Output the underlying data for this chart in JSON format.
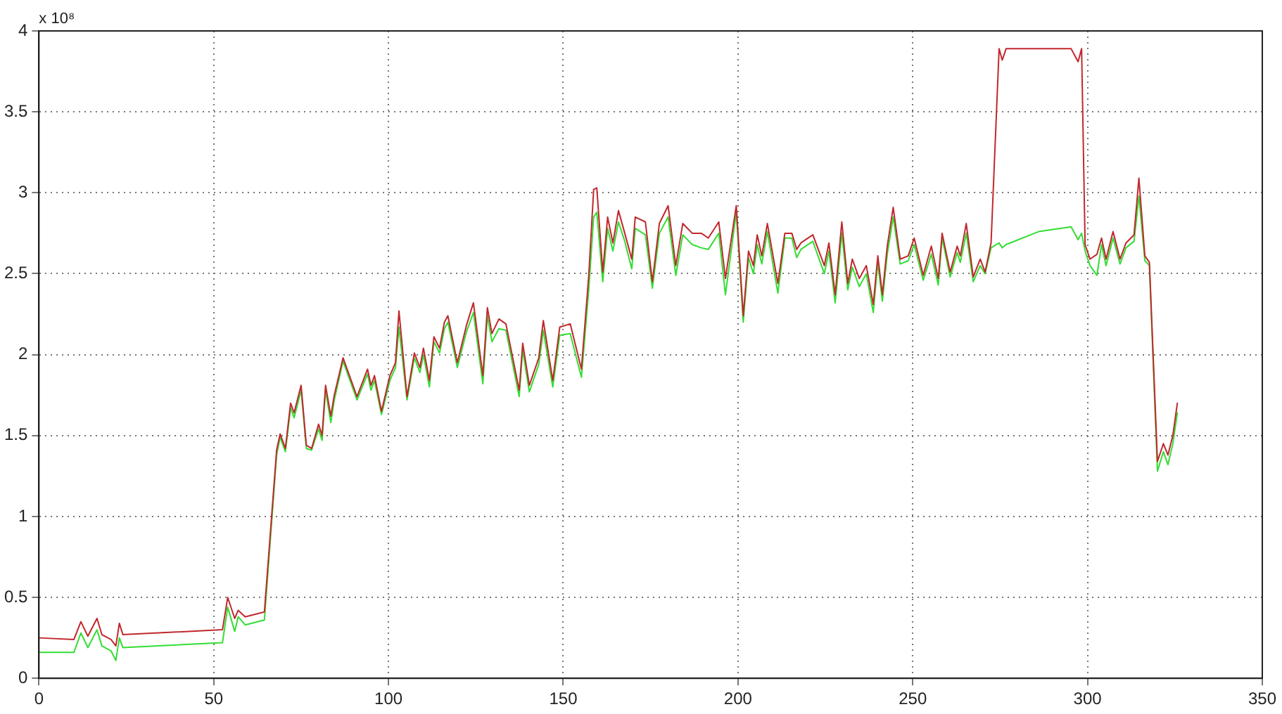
{
  "chart_data": {
    "type": "line",
    "annotations": [
      "x 10⁸"
    ],
    "x": [
      0,
      10,
      12,
      14,
      16.6,
      18,
      20.6,
      22,
      23,
      24,
      52.5,
      54,
      56,
      57,
      59,
      64.5,
      68,
      69,
      70.5,
      72,
      73,
      75,
      76.5,
      78,
      80,
      81,
      82,
      83.5,
      84.5,
      87,
      91,
      94,
      95,
      96,
      98,
      100.4,
      102,
      103,
      105.3,
      107.4,
      109,
      110,
      111.7,
      113,
      114.6,
      116,
      117,
      119.7,
      122.3,
      124.3,
      127,
      128.3,
      129.6,
      131.6,
      133.6,
      137.4,
      138.4,
      140.3,
      143,
      144.3,
      147,
      149,
      152,
      155.2,
      157.3,
      158.7,
      159.6,
      161.3,
      162.7,
      164.2,
      165.8,
      167.6,
      169.6,
      170.6,
      173.5,
      175.5,
      177.5,
      180,
      182.2,
      184.2,
      186.9,
      189.5,
      191.5,
      194.5,
      196.4,
      199.5,
      201.5,
      203,
      204.4,
      205.5,
      206.8,
      208.4,
      211.4,
      213.4,
      215.4,
      216.8,
      218,
      221.4,
      224.7,
      226,
      227.8,
      229.7,
      231.4,
      232.7,
      234.7,
      236.7,
      238.7,
      240,
      241.3,
      242.7,
      244.4,
      246.4,
      248.7,
      250.4,
      253,
      255.3,
      257.3,
      258.4,
      260.7,
      262.7,
      263.6,
      265.3,
      267.3,
      269.3,
      270.7,
      272.4,
      274.7,
      275.6,
      276.7,
      286,
      295.3,
      297.3,
      298.3,
      299.3,
      300.7,
      302.7,
      304,
      305.3,
      307.3,
      309.3,
      311,
      313.3,
      314.7,
      316.4,
      317.7,
      320,
      321.7,
      323,
      324.4,
      325.7
    ],
    "series": [
      {
        "color": "#c0282d",
        "values": [
          0.25,
          0.24,
          0.35,
          0.26,
          0.37,
          0.27,
          0.24,
          0.2,
          0.34,
          0.27,
          0.3,
          0.5,
          0.37,
          0.42,
          0.38,
          0.41,
          1.41,
          1.51,
          1.42,
          1.7,
          1.64,
          1.81,
          1.44,
          1.42,
          1.57,
          1.5,
          1.81,
          1.62,
          1.75,
          1.98,
          1.74,
          1.91,
          1.81,
          1.87,
          1.65,
          1.87,
          1.95,
          2.27,
          1.74,
          2.01,
          1.92,
          2.04,
          1.84,
          2.11,
          2.04,
          2.2,
          2.24,
          1.95,
          2.18,
          2.32,
          1.87,
          2.29,
          2.13,
          2.22,
          2.19,
          1.78,
          2.07,
          1.81,
          1.98,
          2.21,
          1.84,
          2.17,
          2.19,
          1.91,
          2.49,
          3.02,
          3.03,
          2.51,
          2.85,
          2.69,
          2.89,
          2.75,
          2.59,
          2.85,
          2.82,
          2.45,
          2.81,
          2.92,
          2.55,
          2.81,
          2.75,
          2.75,
          2.72,
          2.82,
          2.47,
          2.92,
          2.24,
          2.64,
          2.55,
          2.74,
          2.61,
          2.81,
          2.44,
          2.75,
          2.75,
          2.65,
          2.69,
          2.74,
          2.55,
          2.69,
          2.37,
          2.82,
          2.44,
          2.59,
          2.47,
          2.55,
          2.31,
          2.61,
          2.37,
          2.67,
          2.91,
          2.59,
          2.61,
          2.72,
          2.49,
          2.67,
          2.47,
          2.75,
          2.51,
          2.67,
          2.61,
          2.81,
          2.48,
          2.59,
          2.51,
          2.69,
          3.89,
          3.82,
          3.89,
          3.89,
          3.89,
          3.81,
          3.89,
          2.68,
          2.59,
          2.62,
          2.72,
          2.59,
          2.76,
          2.59,
          2.69,
          2.74,
          3.09,
          2.61,
          2.57,
          1.34,
          1.45,
          1.38,
          1.5,
          1.7
        ]
      },
      {
        "color": "#33dd33",
        "values": [
          0.16,
          0.16,
          0.28,
          0.19,
          0.3,
          0.2,
          0.17,
          0.11,
          0.25,
          0.19,
          0.22,
          0.44,
          0.29,
          0.38,
          0.33,
          0.36,
          1.38,
          1.49,
          1.4,
          1.67,
          1.61,
          1.78,
          1.42,
          1.41,
          1.54,
          1.47,
          1.78,
          1.58,
          1.72,
          1.96,
          1.72,
          1.88,
          1.78,
          1.84,
          1.63,
          1.84,
          1.92,
          2.17,
          1.72,
          1.98,
          1.89,
          2.0,
          1.8,
          2.08,
          2.01,
          2.16,
          2.2,
          1.92,
          2.14,
          2.26,
          1.82,
          2.24,
          2.08,
          2.16,
          2.15,
          1.74,
          2.03,
          1.77,
          1.94,
          2.15,
          1.8,
          2.12,
          2.13,
          1.86,
          2.4,
          2.85,
          2.88,
          2.45,
          2.78,
          2.64,
          2.82,
          2.7,
          2.53,
          2.78,
          2.74,
          2.41,
          2.75,
          2.85,
          2.49,
          2.74,
          2.68,
          2.66,
          2.65,
          2.75,
          2.37,
          2.88,
          2.2,
          2.6,
          2.5,
          2.68,
          2.56,
          2.76,
          2.38,
          2.72,
          2.72,
          2.6,
          2.65,
          2.7,
          2.5,
          2.64,
          2.32,
          2.75,
          2.4,
          2.54,
          2.42,
          2.5,
          2.26,
          2.57,
          2.33,
          2.62,
          2.85,
          2.56,
          2.58,
          2.68,
          2.46,
          2.62,
          2.43,
          2.72,
          2.48,
          2.63,
          2.57,
          2.75,
          2.45,
          2.55,
          2.5,
          2.66,
          2.69,
          2.66,
          2.68,
          2.76,
          2.79,
          2.71,
          2.75,
          2.64,
          2.55,
          2.49,
          2.68,
          2.55,
          2.72,
          2.56,
          2.66,
          2.7,
          2.98,
          2.58,
          2.55,
          1.28,
          1.4,
          1.32,
          1.45,
          1.64
        ]
      }
    ],
    "xlim": [
      0,
      350
    ],
    "xticks": [
      0,
      50,
      100,
      150,
      200,
      250,
      300,
      350
    ],
    "ylim": [
      0,
      4
    ],
    "yticks": [
      0,
      0.5,
      1,
      1.5,
      2,
      2.5,
      3,
      3.5,
      4
    ],
    "grid": true,
    "legend": false,
    "marker": "none",
    "line_style": "solid"
  }
}
